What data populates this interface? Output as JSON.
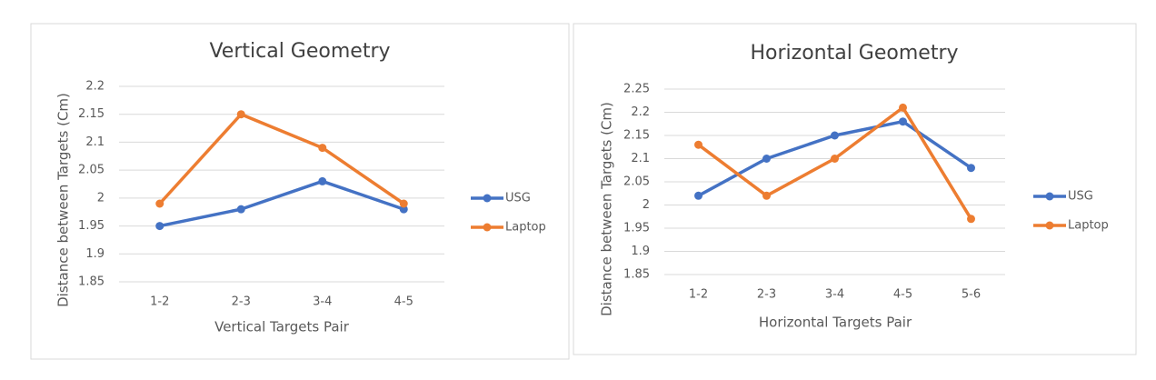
{
  "chart_data": [
    {
      "type": "line",
      "title": "Vertical Geometry",
      "x_label": "Vertical Targets Pair",
      "y_label": "Distance between Targets (Cm)",
      "categories": [
        "1-2",
        "2-3",
        "3-4",
        "4-5"
      ],
      "series": [
        {
          "name": "USG",
          "color": "#4472c4",
          "values": [
            1.95,
            1.98,
            2.03,
            1.98
          ]
        },
        {
          "name": "Laptop",
          "color": "#ed7d31",
          "values": [
            1.99,
            2.15,
            2.09,
            1.99
          ]
        }
      ],
      "ylim": [
        1.85,
        2.2
      ],
      "yticks": [
        1.85,
        1.9,
        1.95,
        2,
        2.05,
        2.1,
        2.15,
        2.2
      ],
      "grid": true,
      "legend": "right"
    },
    {
      "type": "line",
      "title": "Horizontal Geometry",
      "x_label": "Horizontal Targets Pair",
      "y_label": "Distance between Targets (Cm)",
      "categories": [
        "1-2",
        "2-3",
        "3-4",
        "4-5",
        "5-6"
      ],
      "series": [
        {
          "name": "USG",
          "color": "#4472c4",
          "values": [
            2.02,
            2.1,
            2.15,
            2.18,
            2.08
          ]
        },
        {
          "name": "Laptop",
          "color": "#ed7d31",
          "values": [
            2.13,
            2.02,
            2.1,
            2.21,
            1.97
          ]
        }
      ],
      "ylim": [
        1.85,
        2.25
      ],
      "yticks": [
        1.85,
        1.9,
        1.95,
        2,
        2.05,
        2.1,
        2.15,
        2.2,
        2.25
      ],
      "grid": true,
      "legend": "right"
    }
  ]
}
